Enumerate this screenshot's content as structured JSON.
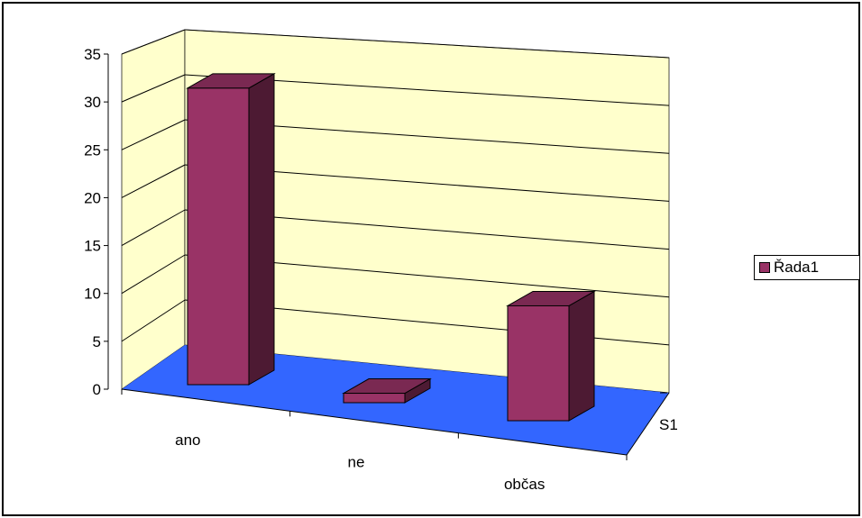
{
  "chart_data": {
    "type": "bar",
    "title": "",
    "xlabel": "",
    "ylabel": "",
    "categories": [
      "ano",
      "ne",
      "občas"
    ],
    "depth_label": "S1",
    "series": [
      {
        "name": "Řada1",
        "values": [
          32,
          1,
          12
        ]
      }
    ],
    "ylim": [
      0,
      35
    ],
    "yticks": [
      0,
      5,
      10,
      15,
      20,
      25,
      30,
      35
    ],
    "grid": true,
    "legend": "right",
    "colors": {
      "wall": "#FFFFCC",
      "floor": "#3366FF",
      "bar_front": "#993366",
      "bar_top": "#7A2952",
      "bar_side": "#4D1A33"
    }
  }
}
